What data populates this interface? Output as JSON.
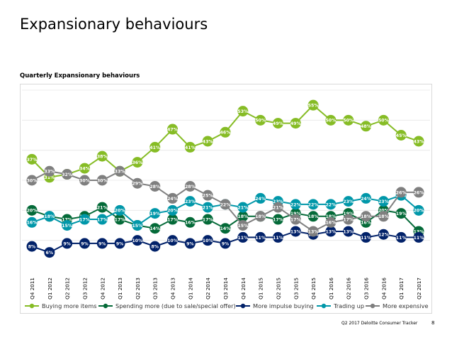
{
  "slide": {
    "title": "Expansionary behaviours",
    "footer": "Q2 2017 Deloitte Consumer Tracker",
    "page_number": "8"
  },
  "chart_data": {
    "type": "line",
    "title": "Quarterly Expansionary behaviours",
    "xlabel": "",
    "ylabel": "",
    "ylim": [
      0,
      60
    ],
    "grid": true,
    "legend": "bottom",
    "categories": [
      "Q4 2011",
      "Q1 2012",
      "Q2 2012",
      "Q3 2012",
      "Q4 2012",
      "Q1 2013",
      "Q2 2013",
      "Q3 2013",
      "Q4 2013",
      "Q1 2014",
      "Q2 2014",
      "Q3 2014",
      "Q4 2014",
      "Q1 2015",
      "Q2 2015",
      "Q3 2015",
      "Q4 2015",
      "Q1 2016",
      "Q2 2016",
      "Q3 2016",
      "Q4 2016",
      "Q1 2017",
      "Q2 2017"
    ],
    "series": [
      {
        "name": "Buying more items",
        "color": "#86bc25",
        "values": [
          37,
          31,
          32,
          34,
          38,
          33,
          36,
          41,
          47,
          41,
          43,
          46,
          53,
          50,
          49,
          49,
          55,
          50,
          50,
          48,
          50,
          45,
          43
        ]
      },
      {
        "name": "Spending more (due to sale/special offer)",
        "color": "#046a38",
        "values": [
          20,
          18,
          17,
          18,
          21,
          17,
          15,
          14,
          17,
          16,
          17,
          14,
          18,
          18,
          17,
          19,
          18,
          18,
          19,
          16,
          20,
          19,
          13
        ]
      },
      {
        "name": "More impulse buying",
        "color": "#012169",
        "values": [
          8,
          6,
          9,
          9,
          9,
          9,
          10,
          8,
          10,
          9,
          10,
          9,
          11,
          11,
          11,
          13,
          12,
          13,
          13,
          11,
          12,
          11,
          11
        ]
      },
      {
        "name": "Trading up",
        "color": "#0097a9",
        "values": [
          16,
          18,
          15,
          17,
          17,
          20,
          15,
          19,
          20,
          23,
          21,
          22,
          21,
          24,
          23,
          22,
          22,
          22,
          23,
          24,
          23,
          25,
          20
        ]
      },
      {
        "name": "More expensive",
        "color": "#7f7f7f",
        "values": [
          30,
          33,
          32,
          30,
          30,
          33,
          29,
          28,
          24,
          28,
          25,
          22,
          15,
          18,
          21,
          17,
          13,
          16,
          17,
          18,
          18,
          26,
          26
        ]
      }
    ],
    "value_suffix": "%"
  }
}
